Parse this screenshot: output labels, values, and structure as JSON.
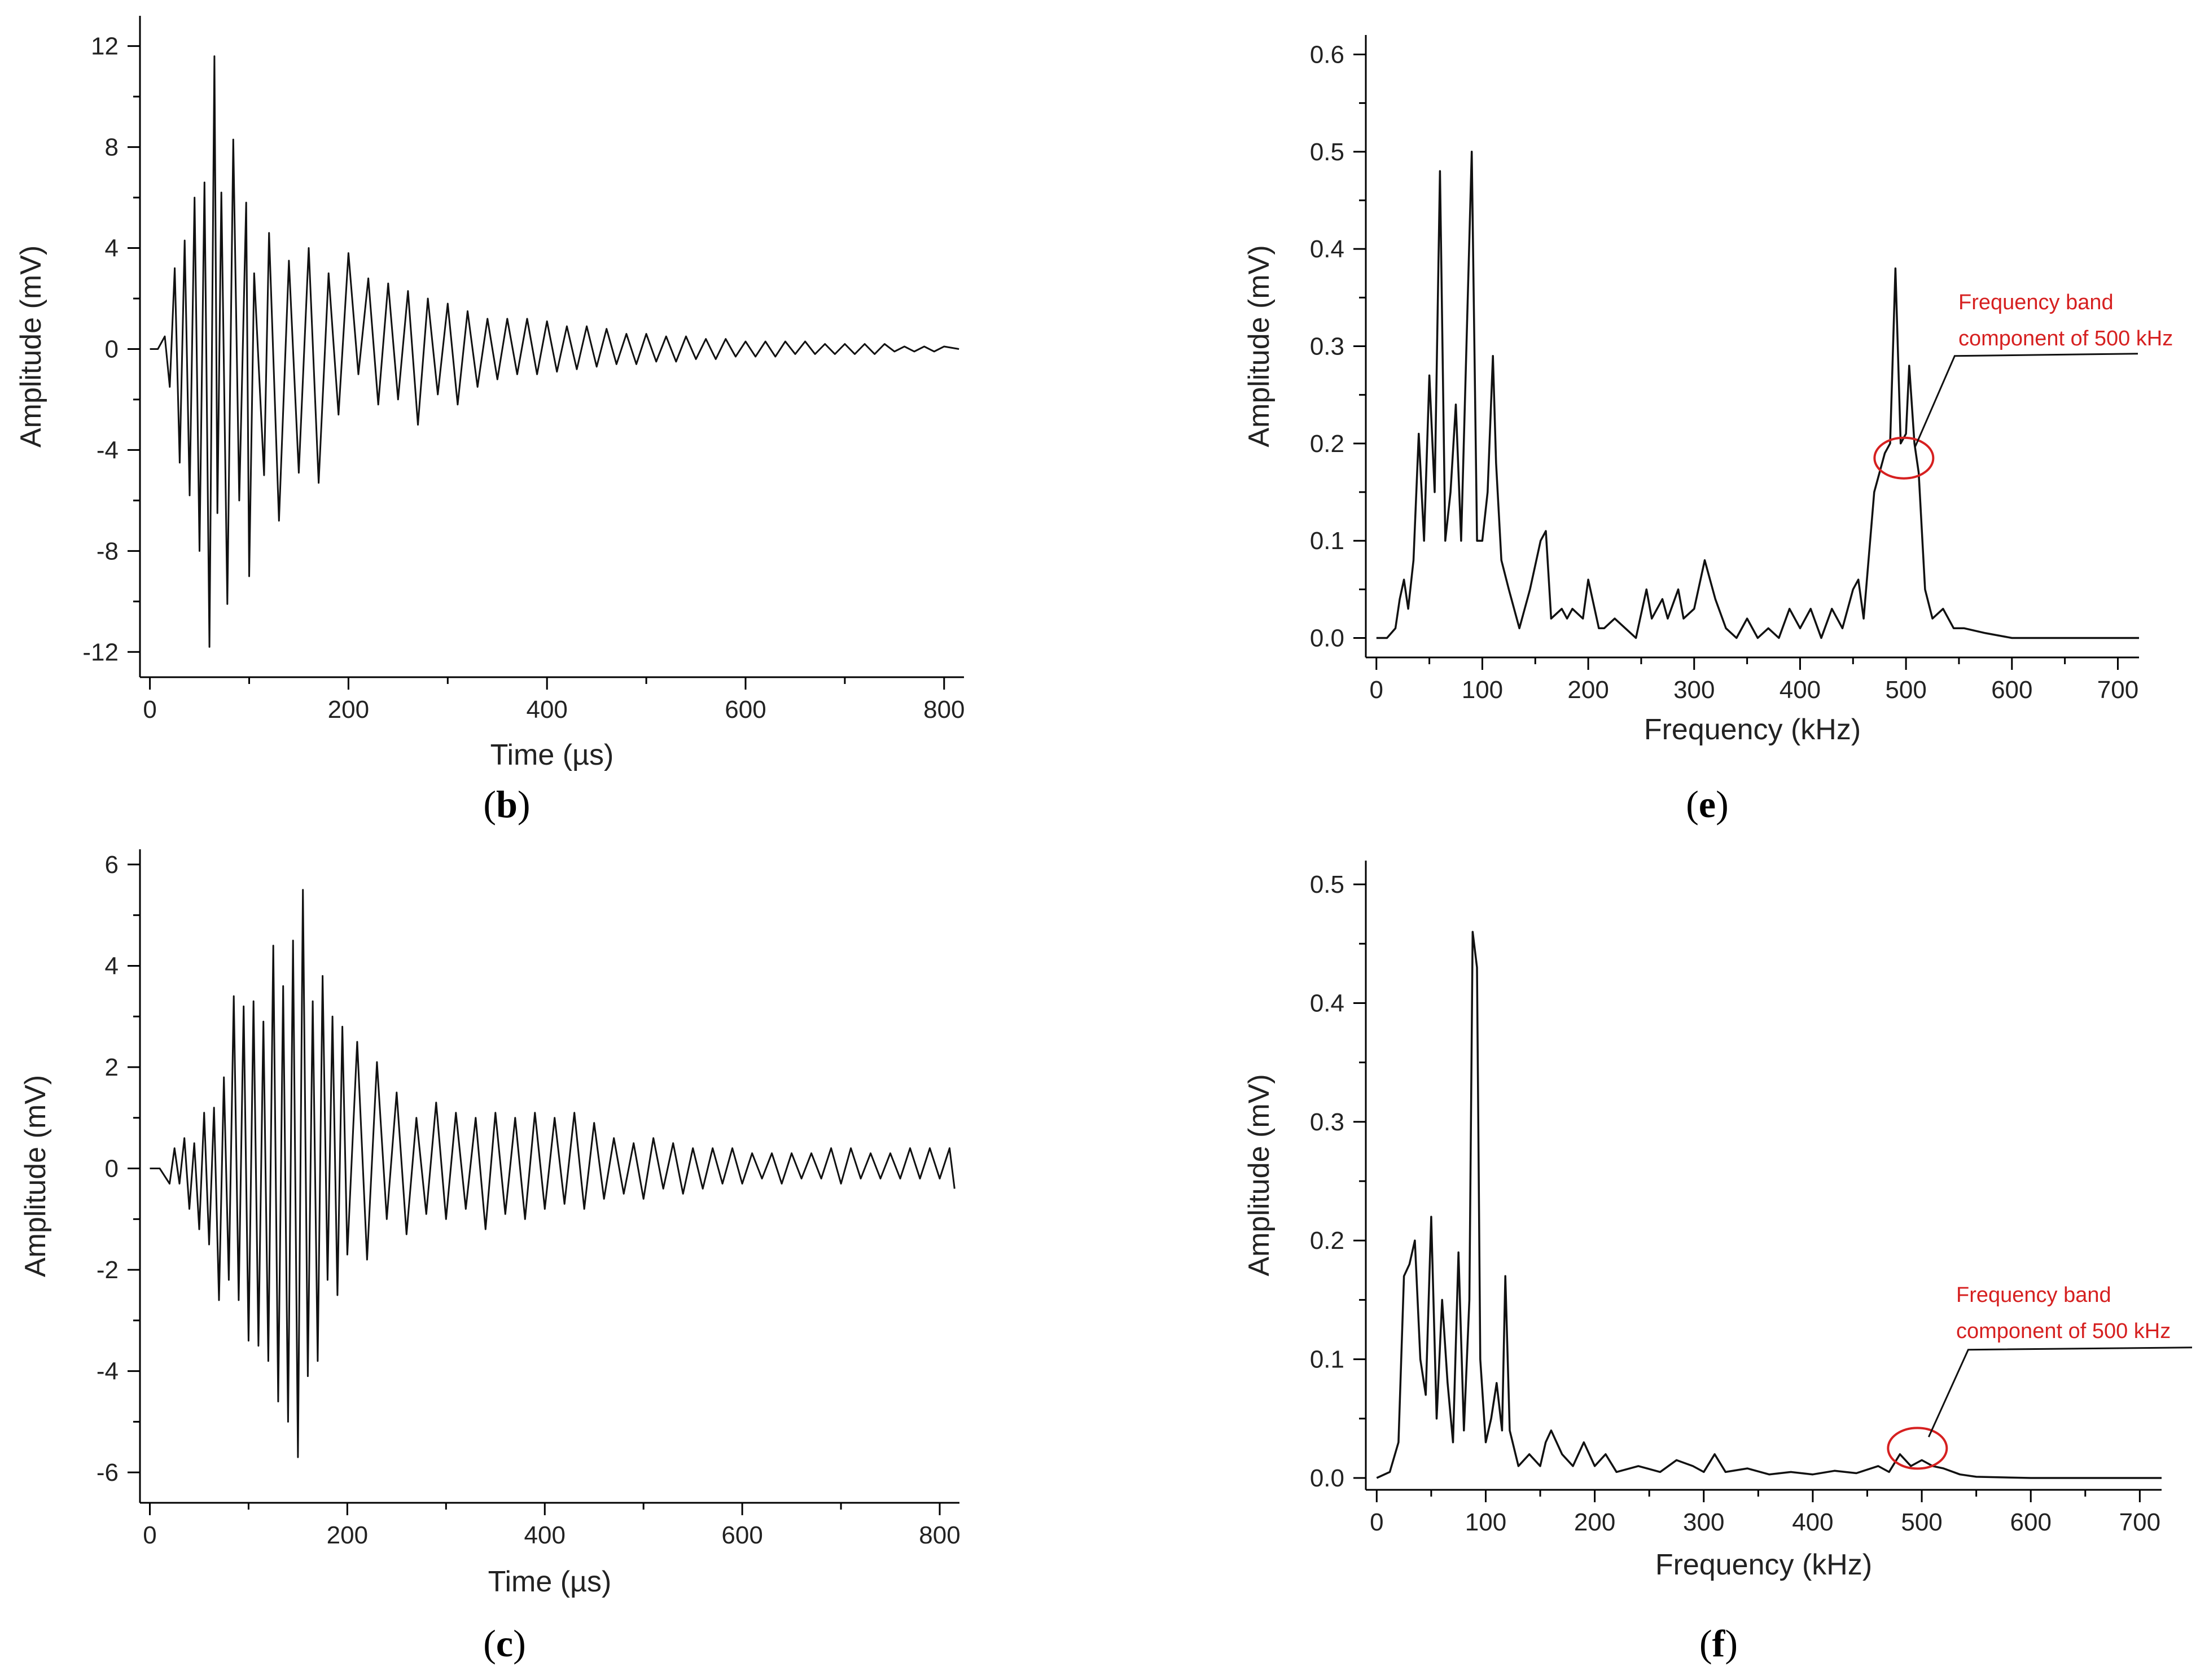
{
  "chart_data": [
    {
      "id": "b",
      "type": "line",
      "panel_label": "b",
      "xlabel": "Time (µs)",
      "ylabel": "Amplitude (mV)",
      "xlim": [
        -10,
        820
      ],
      "ylim": [
        -13,
        13.2
      ],
      "xticks": [
        0,
        200,
        400,
        600,
        800
      ],
      "yticks": [
        -12,
        -8,
        -4,
        0,
        4,
        8,
        12
      ],
      "series": [
        {
          "name": "waveform",
          "x": [
            0,
            8,
            15,
            20,
            25,
            30,
            35,
            40,
            45,
            50,
            55,
            60,
            65,
            68,
            72,
            78,
            84,
            90,
            97,
            100,
            105,
            115,
            120,
            130,
            140,
            150,
            160,
            170,
            180,
            190,
            200,
            210,
            220,
            230,
            240,
            250,
            260,
            270,
            280,
            290,
            300,
            310,
            320,
            330,
            340,
            350,
            360,
            370,
            380,
            390,
            400,
            410,
            420,
            430,
            440,
            450,
            460,
            470,
            480,
            490,
            500,
            510,
            520,
            530,
            540,
            550,
            560,
            570,
            580,
            590,
            600,
            610,
            620,
            630,
            640,
            650,
            660,
            670,
            680,
            690,
            700,
            710,
            720,
            730,
            740,
            750,
            760,
            770,
            780,
            790,
            800,
            815
          ],
          "values": [
            0,
            0,
            0.5,
            -1.5,
            3.2,
            -4.5,
            4.3,
            -5.8,
            6.0,
            -8.0,
            6.6,
            -11.8,
            11.6,
            -6.5,
            6.2,
            -10.1,
            8.3,
            -6.0,
            5.8,
            -9.0,
            3.0,
            -5.0,
            4.6,
            -6.8,
            3.5,
            -4.9,
            4.0,
            -5.3,
            3.0,
            -2.6,
            3.8,
            -1.0,
            2.8,
            -2.2,
            2.6,
            -2.0,
            2.3,
            -3.0,
            2.0,
            -1.8,
            1.8,
            -2.2,
            1.5,
            -1.5,
            1.2,
            -1.2,
            1.2,
            -1.0,
            1.2,
            -1.0,
            1.1,
            -0.9,
            0.9,
            -0.8,
            0.9,
            -0.7,
            0.8,
            -0.6,
            0.6,
            -0.6,
            0.6,
            -0.5,
            0.5,
            -0.5,
            0.5,
            -0.4,
            0.4,
            -0.4,
            0.4,
            -0.3,
            0.3,
            -0.3,
            0.3,
            -0.3,
            0.3,
            -0.2,
            0.3,
            -0.2,
            0.2,
            -0.2,
            0.2,
            -0.2,
            0.2,
            -0.2,
            0.2,
            -0.1,
            0.1,
            -0.1,
            0.1,
            -0.1,
            0.1,
            0
          ]
        }
      ]
    },
    {
      "id": "e",
      "type": "line",
      "panel_label": "e",
      "xlabel": "Frequency (kHz)",
      "ylabel": "Amplitude (mV)",
      "xlim": [
        -10,
        720
      ],
      "ylim": [
        -0.02,
        0.62
      ],
      "xticks": [
        0,
        100,
        200,
        300,
        400,
        500,
        600,
        700
      ],
      "yticks": [
        0.0,
        0.1,
        0.2,
        0.3,
        0.4,
        0.5,
        0.6
      ],
      "annotation": {
        "line1": "Frequency band",
        "line2": "component of 500 kHz",
        "center_x": 498,
        "center_y": 0.185
      },
      "series": [
        {
          "name": "spectrum",
          "x": [
            0,
            10,
            18,
            22,
            26,
            30,
            35,
            40,
            45,
            50,
            55,
            60,
            65,
            70,
            75,
            80,
            85,
            90,
            95,
            100,
            105,
            110,
            113,
            118,
            125,
            135,
            145,
            155,
            160,
            165,
            175,
            180,
            185,
            195,
            200,
            210,
            215,
            225,
            235,
            245,
            255,
            260,
            270,
            275,
            285,
            290,
            300,
            310,
            320,
            330,
            340,
            350,
            360,
            370,
            380,
            390,
            400,
            410,
            420,
            430,
            440,
            450,
            455,
            460,
            470,
            480,
            485,
            490,
            495,
            500,
            503,
            508,
            512,
            518,
            525,
            535,
            545,
            555,
            575,
            600,
            650,
            720
          ],
          "values": [
            0,
            0,
            0.01,
            0.04,
            0.06,
            0.03,
            0.08,
            0.21,
            0.1,
            0.27,
            0.15,
            0.48,
            0.1,
            0.15,
            0.24,
            0.1,
            0.3,
            0.5,
            0.1,
            0.1,
            0.15,
            0.29,
            0.18,
            0.08,
            0.05,
            0.01,
            0.05,
            0.1,
            0.11,
            0.02,
            0.03,
            0.02,
            0.03,
            0.02,
            0.06,
            0.01,
            0.01,
            0.02,
            0.01,
            0.0,
            0.05,
            0.02,
            0.04,
            0.02,
            0.05,
            0.02,
            0.03,
            0.08,
            0.04,
            0.01,
            0.0,
            0.02,
            0.0,
            0.01,
            0.0,
            0.03,
            0.01,
            0.03,
            0.0,
            0.03,
            0.01,
            0.05,
            0.06,
            0.02,
            0.15,
            0.19,
            0.2,
            0.38,
            0.2,
            0.21,
            0.28,
            0.2,
            0.17,
            0.05,
            0.02,
            0.03,
            0.01,
            0.01,
            0.005,
            0.0,
            0.0,
            0.0
          ]
        }
      ]
    },
    {
      "id": "c",
      "type": "line",
      "panel_label": "c",
      "xlabel": "Time (µs)",
      "ylabel": "Amplitude (mV)",
      "xlim": [
        -10,
        820
      ],
      "ylim": [
        -6.6,
        6.3
      ],
      "xticks": [
        0,
        200,
        400,
        600,
        800
      ],
      "yticks": [
        -6,
        -4,
        -2,
        0,
        2,
        4,
        6
      ],
      "series": [
        {
          "name": "waveform",
          "x": [
            0,
            10,
            20,
            25,
            30,
            35,
            40,
            45,
            50,
            55,
            60,
            65,
            70,
            75,
            80,
            85,
            90,
            95,
            100,
            105,
            110,
            115,
            120,
            125,
            130,
            135,
            140,
            145,
            150,
            155,
            160,
            165,
            170,
            175,
            180,
            185,
            190,
            195,
            200,
            210,
            220,
            230,
            240,
            250,
            260,
            270,
            280,
            290,
            300,
            310,
            320,
            330,
            340,
            350,
            360,
            370,
            380,
            390,
            400,
            410,
            420,
            430,
            440,
            450,
            460,
            470,
            480,
            490,
            500,
            510,
            520,
            530,
            540,
            550,
            560,
            570,
            580,
            590,
            600,
            610,
            620,
            630,
            640,
            650,
            660,
            670,
            680,
            690,
            700,
            710,
            720,
            730,
            740,
            750,
            760,
            770,
            780,
            790,
            800,
            810,
            815
          ],
          "values": [
            0,
            0,
            -0.3,
            0.4,
            -0.3,
            0.6,
            -0.8,
            0.5,
            -1.2,
            1.1,
            -1.5,
            1.2,
            -2.6,
            1.8,
            -2.2,
            3.4,
            -2.6,
            3.2,
            -3.4,
            3.3,
            -3.5,
            2.9,
            -3.8,
            4.4,
            -4.6,
            3.6,
            -5.0,
            4.5,
            -5.7,
            5.5,
            -4.1,
            3.3,
            -3.8,
            3.8,
            -2.2,
            3.0,
            -2.5,
            2.8,
            -1.7,
            2.5,
            -1.8,
            2.1,
            -1.0,
            1.5,
            -1.3,
            1.0,
            -0.9,
            1.3,
            -1.0,
            1.1,
            -0.8,
            1.0,
            -1.2,
            1.1,
            -0.9,
            1.0,
            -1.0,
            1.1,
            -0.8,
            1.0,
            -0.7,
            1.1,
            -0.8,
            0.9,
            -0.6,
            0.6,
            -0.5,
            0.5,
            -0.6,
            0.6,
            -0.4,
            0.5,
            -0.5,
            0.4,
            -0.4,
            0.4,
            -0.3,
            0.4,
            -0.3,
            0.3,
            -0.2,
            0.3,
            -0.3,
            0.3,
            -0.2,
            0.3,
            -0.2,
            0.4,
            -0.3,
            0.4,
            -0.2,
            0.3,
            -0.2,
            0.3,
            -0.2,
            0.4,
            -0.2,
            0.4,
            -0.2,
            0.4,
            -0.4
          ]
        }
      ]
    },
    {
      "id": "f",
      "type": "line",
      "panel_label": "f",
      "xlabel": "Frequency (kHz)",
      "ylabel": "Amplitude (mV)",
      "xlim": [
        -10,
        720
      ],
      "ylim": [
        -0.01,
        0.52
      ],
      "xticks": [
        0,
        100,
        200,
        300,
        400,
        500,
        600,
        700
      ],
      "yticks": [
        0.0,
        0.1,
        0.2,
        0.3,
        0.4,
        0.5
      ],
      "annotation": {
        "line1": "Frequency band",
        "line2": "component of 500 kHz",
        "center_x": 496,
        "center_y": 0.025
      },
      "series": [
        {
          "name": "spectrum",
          "x": [
            0,
            12,
            20,
            25,
            30,
            35,
            40,
            45,
            50,
            55,
            60,
            65,
            70,
            75,
            80,
            85,
            88,
            92,
            95,
            100,
            105,
            110,
            115,
            118,
            122,
            130,
            140,
            150,
            155,
            160,
            170,
            180,
            190,
            200,
            210,
            220,
            240,
            260,
            275,
            290,
            300,
            310,
            320,
            340,
            360,
            380,
            400,
            420,
            440,
            460,
            470,
            480,
            490,
            500,
            510,
            520,
            535,
            550,
            600,
            650,
            720
          ],
          "values": [
            0,
            0.005,
            0.03,
            0.17,
            0.18,
            0.2,
            0.1,
            0.07,
            0.22,
            0.05,
            0.15,
            0.08,
            0.03,
            0.19,
            0.04,
            0.15,
            0.46,
            0.43,
            0.1,
            0.03,
            0.05,
            0.08,
            0.04,
            0.17,
            0.04,
            0.01,
            0.02,
            0.01,
            0.03,
            0.04,
            0.02,
            0.01,
            0.03,
            0.01,
            0.02,
            0.005,
            0.01,
            0.005,
            0.015,
            0.01,
            0.005,
            0.02,
            0.005,
            0.008,
            0.003,
            0.005,
            0.003,
            0.006,
            0.004,
            0.01,
            0.005,
            0.02,
            0.01,
            0.015,
            0.01,
            0.008,
            0.003,
            0.001,
            0,
            0,
            0
          ]
        }
      ]
    }
  ]
}
